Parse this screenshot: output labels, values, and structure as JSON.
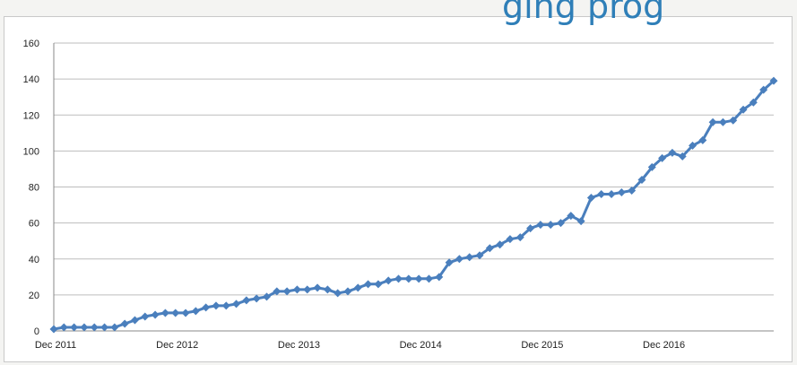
{
  "header": {
    "title_fragment": "ging prog"
  },
  "chart_data": {
    "type": "line",
    "title": "",
    "xlabel": "",
    "ylabel": "",
    "ylim": [
      0,
      160
    ],
    "yticks": [
      0,
      20,
      40,
      60,
      80,
      100,
      120,
      140,
      160
    ],
    "xticks": [
      {
        "label": "Dec 2011",
        "index": 0
      },
      {
        "label": "Dec 2012",
        "index": 12
      },
      {
        "label": "Dec 2013",
        "index": 24
      },
      {
        "label": "Dec 2014",
        "index": 36
      },
      {
        "label": "Dec 2015",
        "index": 48
      },
      {
        "label": "Dec 2016",
        "index": 60
      }
    ],
    "grid": true,
    "legend": "none",
    "color": "#4a7fbd",
    "series": [
      {
        "values": [
          1,
          2,
          2,
          2,
          2,
          2,
          2,
          4,
          6,
          8,
          9,
          10,
          10,
          10,
          11,
          13,
          14,
          14,
          15,
          17,
          18,
          19,
          22,
          22,
          23,
          23,
          24,
          23,
          21,
          22,
          24,
          26,
          26,
          28,
          29,
          29,
          29,
          29,
          30,
          38,
          40,
          41,
          42,
          46,
          48,
          51,
          52,
          57,
          59,
          59,
          60,
          64,
          61,
          74,
          76,
          76,
          77,
          78,
          84,
          91,
          96,
          99,
          97,
          103,
          106,
          116,
          116,
          117,
          123,
          127,
          134,
          139
        ]
      }
    ]
  }
}
